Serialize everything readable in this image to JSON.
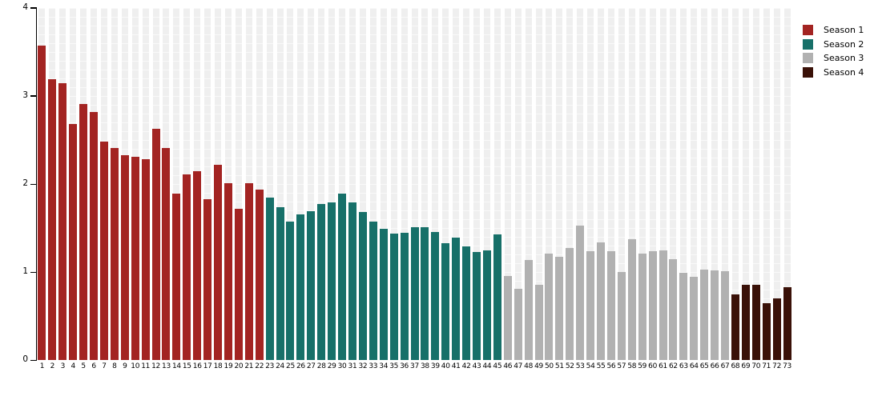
{
  "chart_data": {
    "type": "bar",
    "title": "",
    "xlabel": "",
    "ylabel": "",
    "ylim": [
      0,
      4
    ],
    "yticks": [
      "0",
      "1",
      "2",
      "3",
      "4"
    ],
    "grid": "striped-columns",
    "legend_position": "top-right",
    "stripe_color": "#EFEFEF",
    "background_color": "#FFFFFF",
    "axis_color": "#000000",
    "categories": [
      "1",
      "2",
      "3",
      "4",
      "5",
      "6",
      "7",
      "8",
      "9",
      "10",
      "11",
      "12",
      "13",
      "14",
      "15",
      "16",
      "17",
      "18",
      "19",
      "20",
      "21",
      "22",
      "23",
      "24",
      "25",
      "26",
      "27",
      "28",
      "29",
      "30",
      "31",
      "32",
      "33",
      "34",
      "35",
      "36",
      "37",
      "38",
      "39",
      "40",
      "41",
      "42",
      "43",
      "44",
      "45",
      "46",
      "47",
      "48",
      "49",
      "50",
      "51",
      "52",
      "53",
      "54",
      "55",
      "56",
      "57",
      "58",
      "59",
      "60",
      "61",
      "62",
      "63",
      "64",
      "65",
      "66",
      "67",
      "68",
      "69",
      "70",
      "71",
      "72",
      "73"
    ],
    "series": [
      {
        "name": "Season 1",
        "color": "#A32422",
        "values": [
          3.57,
          3.19,
          3.15,
          2.68,
          2.91,
          2.82,
          2.48,
          2.41,
          2.33,
          2.31,
          2.28,
          2.63,
          2.41,
          1.89,
          2.11,
          2.15,
          1.83,
          2.22,
          2.01,
          1.72,
          2.01,
          1.94
        ]
      },
      {
        "name": "Season 2",
        "color": "#177069",
        "values": [
          1.85,
          1.74,
          1.57,
          1.66,
          1.69,
          1.77,
          1.79,
          1.89,
          1.79,
          1.68,
          1.57,
          1.49,
          1.44,
          1.45,
          1.51,
          1.51,
          1.46,
          1.33,
          1.39,
          1.29,
          1.23,
          1.25,
          1.43
        ]
      },
      {
        "name": "Season 3",
        "color": "#B1B1B1",
        "values": [
          0.96,
          0.81,
          1.14,
          0.86,
          1.21,
          1.17,
          1.27,
          1.53,
          1.24,
          1.34,
          1.24,
          1.0,
          1.37,
          1.21,
          1.24,
          1.25,
          1.15,
          0.99,
          0.95,
          1.03,
          1.02,
          1.01
        ]
      },
      {
        "name": "Season 4",
        "color": "#3A1108",
        "values": [
          0.75,
          0.86,
          0.86,
          0.65,
          0.7,
          0.83
        ]
      }
    ]
  }
}
